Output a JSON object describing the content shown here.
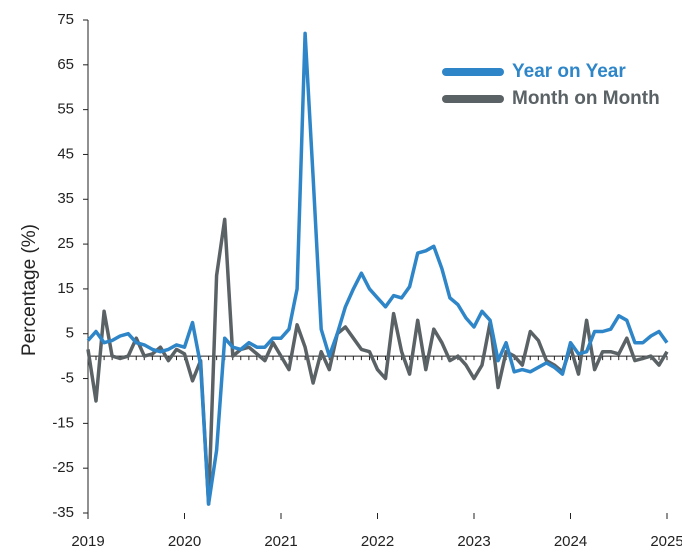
{
  "chart_data": {
    "type": "line",
    "y_label": "Percentage (%)",
    "x": [
      2019,
      2019.083,
      2019.167,
      2019.25,
      2019.333,
      2019.417,
      2019.5,
      2019.583,
      2019.667,
      2019.75,
      2019.833,
      2019.917,
      2020,
      2020.083,
      2020.167,
      2020.25,
      2020.333,
      2020.417,
      2020.5,
      2020.583,
      2020.667,
      2020.75,
      2020.833,
      2020.917,
      2021,
      2021.083,
      2021.167,
      2021.25,
      2021.333,
      2021.417,
      2021.5,
      2021.583,
      2021.667,
      2021.75,
      2021.833,
      2021.917,
      2022,
      2022.083,
      2022.167,
      2022.25,
      2022.333,
      2022.417,
      2022.5,
      2022.583,
      2022.667,
      2022.75,
      2022.833,
      2022.917,
      2023,
      2023.083,
      2023.167,
      2023.25,
      2023.333,
      2023.417,
      2023.5,
      2023.583,
      2023.667,
      2023.75,
      2023.833,
      2023.917,
      2024,
      2024.083,
      2024.167,
      2024.25,
      2024.333,
      2024.417,
      2024.5,
      2024.583,
      2024.667,
      2024.75,
      2024.833,
      2024.917,
      2025
    ],
    "series": [
      {
        "name": "Year on Year",
        "color": "#2e86c8",
        "values": [
          3.5,
          5.5,
          3,
          3.5,
          4.5,
          5,
          3,
          2.5,
          1.5,
          1,
          1.5,
          2.5,
          2,
          7.5,
          -2,
          -33,
          -21,
          4,
          2,
          1.5,
          3,
          2,
          2,
          4,
          4,
          6,
          15,
          72,
          40,
          6,
          0,
          5,
          11,
          15,
          18.5,
          15,
          13,
          11,
          13.5,
          13,
          15.5,
          23,
          23.5,
          24.5,
          19.5,
          13,
          11.5,
          8.5,
          6.5,
          10,
          8,
          -1,
          3,
          -3.5,
          -3,
          -3.5,
          -2.5,
          -1.5,
          -2.5,
          -4,
          3,
          0.5,
          1,
          5.5,
          5.5,
          6,
          9,
          8,
          3,
          3,
          4.5,
          5.5,
          3
        ]
      },
      {
        "name": "Month on Month",
        "color": "#5a6265",
        "values": [
          1.5,
          -10,
          10,
          0,
          -0.5,
          0,
          4,
          0,
          0.5,
          2,
          -1,
          1.5,
          0.5,
          -5.5,
          -1,
          -33,
          18,
          30.5,
          0,
          1.5,
          2,
          0.5,
          -1,
          3,
          0,
          -3,
          7,
          2,
          -6,
          1,
          -3,
          5,
          6.5,
          4,
          1.5,
          1,
          -3,
          -5,
          9.5,
          1,
          -4,
          8,
          -3,
          6,
          3,
          -1,
          0,
          -2,
          -5,
          -2,
          7.5,
          -7,
          1,
          0,
          -2,
          5.5,
          3.5,
          -1,
          -2,
          -3.5,
          2,
          -4,
          8,
          -3,
          1,
          1,
          0.5,
          4,
          -1,
          -0.5,
          0,
          -2,
          1
        ]
      }
    ],
    "xlim": [
      2019,
      2025
    ],
    "xticks": [
      2019,
      2020,
      2021,
      2022,
      2023,
      2024,
      2025
    ],
    "ylim": [
      -35,
      75
    ],
    "yticks": [
      -35,
      -25,
      -15,
      -5,
      5,
      15,
      25,
      35,
      45,
      55,
      65,
      75
    ],
    "legend": "upper right"
  }
}
